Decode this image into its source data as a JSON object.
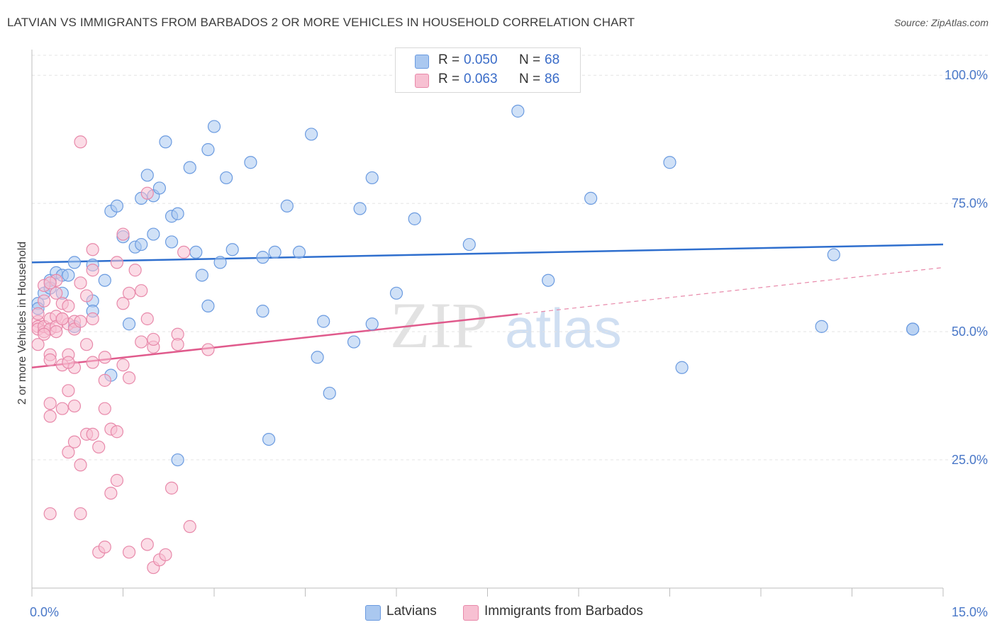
{
  "header": {
    "title": "LATVIAN VS IMMIGRANTS FROM BARBADOS 2 OR MORE VEHICLES IN HOUSEHOLD CORRELATION CHART",
    "source": "Source: ZipAtlas.com"
  },
  "watermark": {
    "zip": "ZIP",
    "atlas": "atlas"
  },
  "legend_top": {
    "rows": [
      {
        "r_label": "R =",
        "r_value": "0.050",
        "n_label": "N =",
        "n_value": "68",
        "color": "#aac8f0",
        "border": "#6b9be0"
      },
      {
        "r_label": "R =",
        "r_value": "0.063",
        "n_label": "N =",
        "n_value": "86",
        "color": "#f7c0d2",
        "border": "#e889aa"
      }
    ]
  },
  "legend_bottom": {
    "items": [
      {
        "label": "Latvians",
        "color": "#aac8f0",
        "border": "#6b9be0"
      },
      {
        "label": "Immigrants from Barbados",
        "color": "#f7c0d2",
        "border": "#e889aa"
      }
    ]
  },
  "chart_data": {
    "type": "scatter",
    "title": "LATVIAN VS IMMIGRANTS FROM BARBADOS 2 OR MORE VEHICLES IN HOUSEHOLD CORRELATION CHART",
    "xlabel": "",
    "ylabel": "2 or more Vehicles in Household",
    "xlim": [
      0,
      15
    ],
    "ylim": [
      0,
      105
    ],
    "x_tick_labels": [
      "0.0%",
      "15.0%"
    ],
    "y_ticks": [
      25,
      50,
      75,
      100
    ],
    "y_tick_labels": [
      "25.0%",
      "50.0%",
      "75.0%",
      "100.0%"
    ],
    "grid": true,
    "legend_position": "top-center",
    "series": [
      {
        "name": "Latvians",
        "color": "#6b9be0",
        "fill": "#aac8f0",
        "trend": {
          "x": [
            0,
            15
          ],
          "y": [
            63.5,
            67.0
          ],
          "dashed_from": null
        },
        "points": [
          [
            0.1,
            55.5
          ],
          [
            0.1,
            54.5
          ],
          [
            0.2,
            57.5
          ],
          [
            0.3,
            60.0
          ],
          [
            0.3,
            58.5
          ],
          [
            0.4,
            61.5
          ],
          [
            0.5,
            61.0
          ],
          [
            0.6,
            61.0
          ],
          [
            0.7,
            51.0
          ],
          [
            0.7,
            63.5
          ],
          [
            1.0,
            63.0
          ],
          [
            1.0,
            56.0
          ],
          [
            1.0,
            54.0
          ],
          [
            1.2,
            60.0
          ],
          [
            1.3,
            73.5
          ],
          [
            1.3,
            41.5
          ],
          [
            1.4,
            74.5
          ],
          [
            1.5,
            68.5
          ],
          [
            1.6,
            51.5
          ],
          [
            1.7,
            66.5
          ],
          [
            1.8,
            76.0
          ],
          [
            1.8,
            67.0
          ],
          [
            1.9,
            80.5
          ],
          [
            2.0,
            76.5
          ],
          [
            2.0,
            69.0
          ],
          [
            2.1,
            78.0
          ],
          [
            2.2,
            87.0
          ],
          [
            2.3,
            67.5
          ],
          [
            2.3,
            72.5
          ],
          [
            2.4,
            73.0
          ],
          [
            2.4,
            25.0
          ],
          [
            2.6,
            82.0
          ],
          [
            2.7,
            65.5
          ],
          [
            2.8,
            61.0
          ],
          [
            2.9,
            55.0
          ],
          [
            2.9,
            85.5
          ],
          [
            3.0,
            90.0
          ],
          [
            3.1,
            63.5
          ],
          [
            3.2,
            80.0
          ],
          [
            3.3,
            66.0
          ],
          [
            3.6,
            83.0
          ],
          [
            3.8,
            64.5
          ],
          [
            3.8,
            54.0
          ],
          [
            3.9,
            29.0
          ],
          [
            4.0,
            65.5
          ],
          [
            4.2,
            74.5
          ],
          [
            4.4,
            65.5
          ],
          [
            4.6,
            88.5
          ],
          [
            4.7,
            45.0
          ],
          [
            4.8,
            52.0
          ],
          [
            4.9,
            38.0
          ],
          [
            5.3,
            48.0
          ],
          [
            5.4,
            74.0
          ],
          [
            5.6,
            80.0
          ],
          [
            5.6,
            51.5
          ],
          [
            6.0,
            57.5
          ],
          [
            6.3,
            72.0
          ],
          [
            7.2,
            67.0
          ],
          [
            8.0,
            93.0
          ],
          [
            8.5,
            60.0
          ],
          [
            9.2,
            76.0
          ],
          [
            10.5,
            83.0
          ],
          [
            10.7,
            43.0
          ],
          [
            13.0,
            51.0
          ],
          [
            13.2,
            65.0
          ],
          [
            14.5,
            50.5
          ],
          [
            14.5,
            50.5
          ],
          [
            0.5,
            57.5
          ]
        ]
      },
      {
        "name": "Immigrants from Barbados",
        "color": "#e889aa",
        "fill": "#f7c0d2",
        "trend": {
          "x": [
            0,
            15
          ],
          "y": [
            43.0,
            62.5
          ],
          "dashed_from": 8.0
        },
        "points": [
          [
            0.1,
            52.0
          ],
          [
            0.1,
            51.0
          ],
          [
            0.1,
            50.5
          ],
          [
            0.1,
            47.5
          ],
          [
            0.1,
            53.5
          ],
          [
            0.2,
            50.0
          ],
          [
            0.2,
            51.0
          ],
          [
            0.2,
            56.0
          ],
          [
            0.2,
            59.0
          ],
          [
            0.3,
            52.5
          ],
          [
            0.3,
            50.5
          ],
          [
            0.3,
            45.5
          ],
          [
            0.3,
            44.5
          ],
          [
            0.3,
            36.0
          ],
          [
            0.3,
            33.5
          ],
          [
            0.3,
            14.5
          ],
          [
            0.4,
            53.0
          ],
          [
            0.4,
            51.0
          ],
          [
            0.4,
            60.0
          ],
          [
            0.4,
            57.5
          ],
          [
            0.5,
            55.5
          ],
          [
            0.5,
            52.5
          ],
          [
            0.5,
            43.5
          ],
          [
            0.5,
            35.0
          ],
          [
            0.6,
            55.0
          ],
          [
            0.6,
            51.5
          ],
          [
            0.6,
            45.5
          ],
          [
            0.6,
            38.5
          ],
          [
            0.6,
            26.5
          ],
          [
            0.7,
            52.0
          ],
          [
            0.7,
            50.5
          ],
          [
            0.7,
            43.0
          ],
          [
            0.7,
            35.5
          ],
          [
            0.7,
            28.5
          ],
          [
            0.8,
            59.5
          ],
          [
            0.8,
            52.0
          ],
          [
            0.8,
            87.0
          ],
          [
            0.8,
            24.0
          ],
          [
            0.8,
            14.5
          ],
          [
            0.9,
            57.0
          ],
          [
            0.9,
            47.5
          ],
          [
            0.9,
            30.0
          ],
          [
            1.0,
            66.0
          ],
          [
            1.0,
            62.0
          ],
          [
            1.0,
            52.5
          ],
          [
            1.0,
            44.0
          ],
          [
            1.0,
            30.0
          ],
          [
            1.1,
            27.5
          ],
          [
            1.1,
            7.0
          ],
          [
            1.2,
            45.0
          ],
          [
            1.2,
            40.5
          ],
          [
            1.2,
            35.0
          ],
          [
            1.2,
            8.0
          ],
          [
            1.3,
            31.0
          ],
          [
            1.3,
            18.5
          ],
          [
            1.4,
            63.5
          ],
          [
            1.4,
            30.5
          ],
          [
            1.4,
            21.0
          ],
          [
            1.5,
            55.5
          ],
          [
            1.5,
            43.5
          ],
          [
            1.5,
            69.0
          ],
          [
            1.6,
            57.5
          ],
          [
            1.6,
            41.0
          ],
          [
            1.6,
            7.0
          ],
          [
            1.7,
            62.0
          ],
          [
            1.8,
            58.0
          ],
          [
            1.8,
            48.0
          ],
          [
            1.9,
            77.0
          ],
          [
            1.9,
            52.5
          ],
          [
            1.9,
            8.5
          ],
          [
            2.0,
            47.0
          ],
          [
            2.0,
            4.0
          ],
          [
            2.0,
            48.5
          ],
          [
            2.1,
            5.5
          ],
          [
            2.2,
            6.5
          ],
          [
            2.3,
            19.5
          ],
          [
            2.4,
            49.5
          ],
          [
            2.4,
            47.5
          ],
          [
            2.5,
            65.5
          ],
          [
            2.6,
            12.0
          ],
          [
            2.9,
            46.5
          ],
          [
            0.2,
            49.5
          ],
          [
            0.4,
            50.0
          ],
          [
            0.5,
            52.5
          ],
          [
            0.6,
            44.0
          ],
          [
            0.3,
            59.5
          ]
        ]
      }
    ]
  }
}
